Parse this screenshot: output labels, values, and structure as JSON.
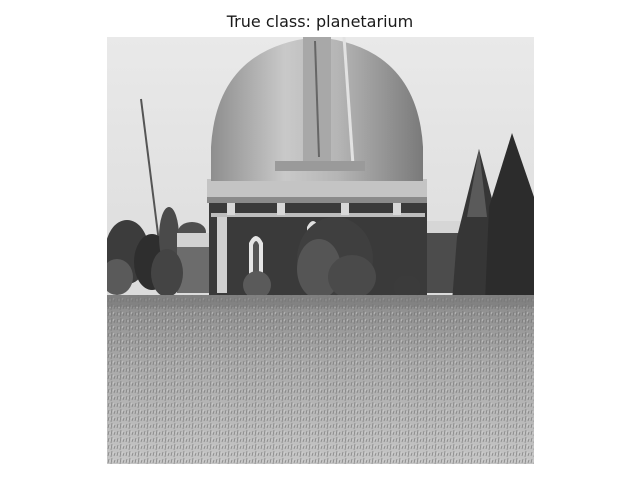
{
  "title": "True class: planetarium"
}
